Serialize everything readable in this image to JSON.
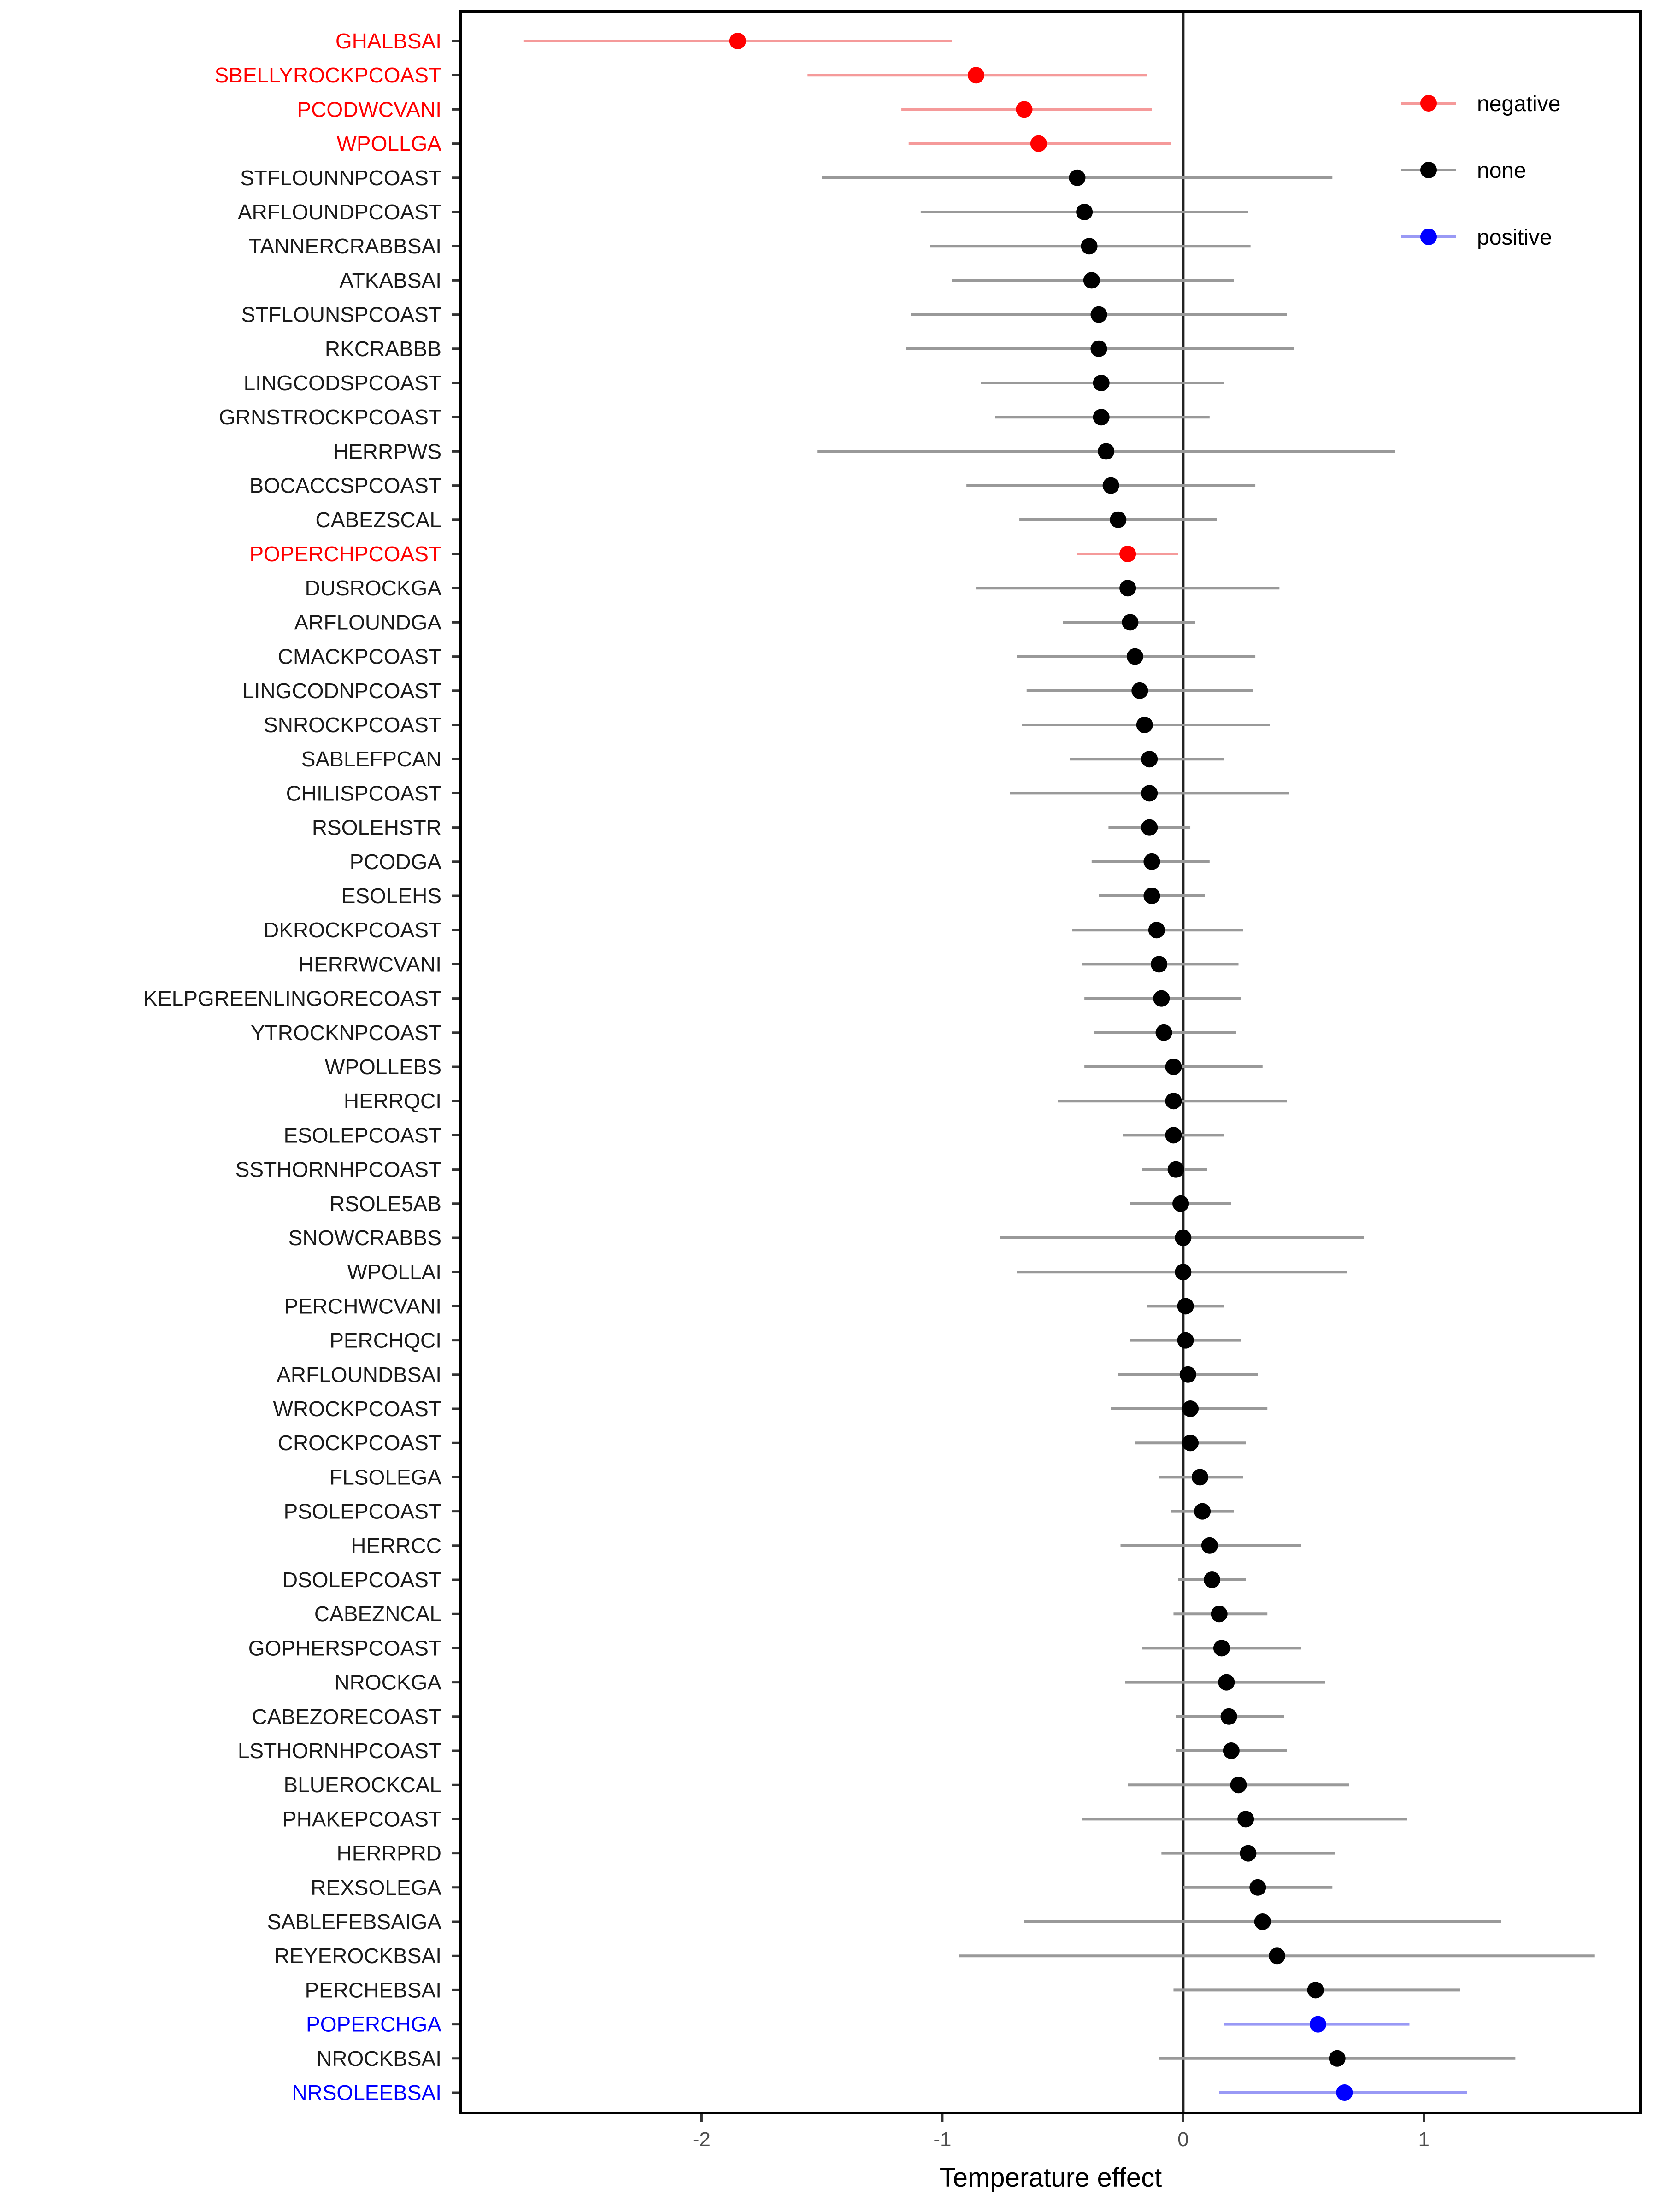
{
  "chart_data": {
    "type": "scatter",
    "subtype": "forest-plot",
    "title": "",
    "xlabel": "Temperature effect",
    "ylabel": "",
    "xlim": [
      -3.0,
      1.9
    ],
    "xticks": [
      -2,
      -1,
      0,
      1
    ],
    "xtick_labels": [
      "-2",
      "-1",
      "0",
      "1"
    ],
    "reference_line_x": 0,
    "grid": false,
    "legend_position": "top-right",
    "legend": [
      {
        "name": "negative",
        "color": "#ff0000",
        "line_color": "#f59a9a"
      },
      {
        "name": "none",
        "color": "#000000",
        "line_color": "#999999"
      },
      {
        "name": "positive",
        "color": "#0000ff",
        "line_color": "#9999f5"
      }
    ],
    "points": [
      {
        "label": "GHALBSAI",
        "est": -1.85,
        "low": -2.74,
        "high": -0.96,
        "group": "negative"
      },
      {
        "label": "SBELLYROCKPCOAST",
        "est": -0.86,
        "low": -1.56,
        "high": -0.15,
        "group": "negative"
      },
      {
        "label": "PCODWCVANI",
        "est": -0.66,
        "low": -1.17,
        "high": -0.13,
        "group": "negative"
      },
      {
        "label": "WPOLLGA",
        "est": -0.6,
        "low": -1.14,
        "high": -0.05,
        "group": "negative"
      },
      {
        "label": "STFLOUNNPCOAST",
        "est": -0.44,
        "low": -1.5,
        "high": 0.62,
        "group": "none"
      },
      {
        "label": "ARFLOUNDPCOAST",
        "est": -0.41,
        "low": -1.09,
        "high": 0.27,
        "group": "none"
      },
      {
        "label": "TANNERCRABBSAI",
        "est": -0.39,
        "low": -1.05,
        "high": 0.28,
        "group": "none"
      },
      {
        "label": "ATKABSAI",
        "est": -0.38,
        "low": -0.96,
        "high": 0.21,
        "group": "none"
      },
      {
        "label": "STFLOUNSPCOAST",
        "est": -0.35,
        "low": -1.13,
        "high": 0.43,
        "group": "none"
      },
      {
        "label": "RKCRABBB",
        "est": -0.35,
        "low": -1.15,
        "high": 0.46,
        "group": "none"
      },
      {
        "label": "LINGCODSPCOAST",
        "est": -0.34,
        "low": -0.84,
        "high": 0.17,
        "group": "none"
      },
      {
        "label": "GRNSTROCKPCOAST",
        "est": -0.34,
        "low": -0.78,
        "high": 0.11,
        "group": "none"
      },
      {
        "label": "HERRPWS",
        "est": -0.32,
        "low": -1.52,
        "high": 0.88,
        "group": "none"
      },
      {
        "label": "BOCACCSPCOAST",
        "est": -0.3,
        "low": -0.9,
        "high": 0.3,
        "group": "none"
      },
      {
        "label": "CABEZSCAL",
        "est": -0.27,
        "low": -0.68,
        "high": 0.14,
        "group": "none"
      },
      {
        "label": "POPERCHPCOAST",
        "est": -0.23,
        "low": -0.44,
        "high": -0.02,
        "group": "negative"
      },
      {
        "label": "DUSROCKGA",
        "est": -0.23,
        "low": -0.86,
        "high": 0.4,
        "group": "none"
      },
      {
        "label": "ARFLOUNDGA",
        "est": -0.22,
        "low": -0.5,
        "high": 0.05,
        "group": "none"
      },
      {
        "label": "CMACKPCOAST",
        "est": -0.2,
        "low": -0.69,
        "high": 0.3,
        "group": "none"
      },
      {
        "label": "LINGCODNPCOAST",
        "est": -0.18,
        "low": -0.65,
        "high": 0.29,
        "group": "none"
      },
      {
        "label": "SNROCKPCOAST",
        "est": -0.16,
        "low": -0.67,
        "high": 0.36,
        "group": "none"
      },
      {
        "label": "SABLEFPCAN",
        "est": -0.14,
        "low": -0.47,
        "high": 0.17,
        "group": "none"
      },
      {
        "label": "CHILISPCOAST",
        "est": -0.14,
        "low": -0.72,
        "high": 0.44,
        "group": "none"
      },
      {
        "label": "RSOLEHSTR",
        "est": -0.14,
        "low": -0.31,
        "high": 0.03,
        "group": "none"
      },
      {
        "label": "PCODGA",
        "est": -0.13,
        "low": -0.38,
        "high": 0.11,
        "group": "none"
      },
      {
        "label": "ESOLEHS",
        "est": -0.13,
        "low": -0.35,
        "high": 0.09,
        "group": "none"
      },
      {
        "label": "DKROCKPCOAST",
        "est": -0.11,
        "low": -0.46,
        "high": 0.25,
        "group": "none"
      },
      {
        "label": "HERRWCVANI",
        "est": -0.1,
        "low": -0.42,
        "high": 0.23,
        "group": "none"
      },
      {
        "label": "KELPGREENLINGORECOAST",
        "est": -0.09,
        "low": -0.41,
        "high": 0.24,
        "group": "none"
      },
      {
        "label": "YTROCKNPCOAST",
        "est": -0.08,
        "low": -0.37,
        "high": 0.22,
        "group": "none"
      },
      {
        "label": "WPOLLEBS",
        "est": -0.04,
        "low": -0.41,
        "high": 0.33,
        "group": "none"
      },
      {
        "label": "HERRQCI",
        "est": -0.04,
        "low": -0.52,
        "high": 0.43,
        "group": "none"
      },
      {
        "label": "ESOLEPCOAST",
        "est": -0.04,
        "low": -0.25,
        "high": 0.17,
        "group": "none"
      },
      {
        "label": "SSTHORNHPCOAST",
        "est": -0.03,
        "low": -0.17,
        "high": 0.1,
        "group": "none"
      },
      {
        "label": "RSOLE5AB",
        "est": -0.01,
        "low": -0.22,
        "high": 0.2,
        "group": "none"
      },
      {
        "label": "SNOWCRABBS",
        "est": 0.0,
        "low": -0.76,
        "high": 0.75,
        "group": "none"
      },
      {
        "label": "WPOLLAI",
        "est": 0.0,
        "low": -0.69,
        "high": 0.68,
        "group": "none"
      },
      {
        "label": "PERCHWCVANI",
        "est": 0.01,
        "low": -0.15,
        "high": 0.17,
        "group": "none"
      },
      {
        "label": "PERCHQCI",
        "est": 0.01,
        "low": -0.22,
        "high": 0.24,
        "group": "none"
      },
      {
        "label": "ARFLOUNDBSAI",
        "est": 0.02,
        "low": -0.27,
        "high": 0.31,
        "group": "none"
      },
      {
        "label": "WROCKPCOAST",
        "est": 0.03,
        "low": -0.3,
        "high": 0.35,
        "group": "none"
      },
      {
        "label": "CROCKPCOAST",
        "est": 0.03,
        "low": -0.2,
        "high": 0.26,
        "group": "none"
      },
      {
        "label": "FLSOLEGA",
        "est": 0.07,
        "low": -0.1,
        "high": 0.25,
        "group": "none"
      },
      {
        "label": "PSOLEPCOAST",
        "est": 0.08,
        "low": -0.05,
        "high": 0.21,
        "group": "none"
      },
      {
        "label": "HERRCC",
        "est": 0.11,
        "low": -0.26,
        "high": 0.49,
        "group": "none"
      },
      {
        "label": "DSOLEPCOAST",
        "est": 0.12,
        "low": -0.02,
        "high": 0.26,
        "group": "none"
      },
      {
        "label": "CABEZNCAL",
        "est": 0.15,
        "low": -0.04,
        "high": 0.35,
        "group": "none"
      },
      {
        "label": "GOPHERSPCOAST",
        "est": 0.16,
        "low": -0.17,
        "high": 0.49,
        "group": "none"
      },
      {
        "label": "NROCKGA",
        "est": 0.18,
        "low": -0.24,
        "high": 0.59,
        "group": "none"
      },
      {
        "label": "CABEZORECOAST",
        "est": 0.19,
        "low": -0.03,
        "high": 0.42,
        "group": "none"
      },
      {
        "label": "LSTHORNHPCOAST",
        "est": 0.2,
        "low": -0.03,
        "high": 0.43,
        "group": "none"
      },
      {
        "label": "BLUEROCKCAL",
        "est": 0.23,
        "low": -0.23,
        "high": 0.69,
        "group": "none"
      },
      {
        "label": "PHAKEPCOAST",
        "est": 0.26,
        "low": -0.42,
        "high": 0.93,
        "group": "none"
      },
      {
        "label": "HERRPRD",
        "est": 0.27,
        "low": -0.09,
        "high": 0.63,
        "group": "none"
      },
      {
        "label": "REXSOLEGA",
        "est": 0.31,
        "low": 0.0,
        "high": 0.62,
        "group": "none"
      },
      {
        "label": "SABLEFEBSAIGA",
        "est": 0.33,
        "low": -0.66,
        "high": 1.32,
        "group": "none"
      },
      {
        "label": "REYEROCKBSAI",
        "est": 0.39,
        "low": -0.93,
        "high": 1.71,
        "group": "none"
      },
      {
        "label": "PERCHEBSAI",
        "est": 0.55,
        "low": -0.04,
        "high": 1.15,
        "group": "none"
      },
      {
        "label": "POPERCHGA",
        "est": 0.56,
        "low": 0.17,
        "high": 0.94,
        "group": "positive"
      },
      {
        "label": "NROCKBSAI",
        "est": 0.64,
        "low": -0.1,
        "high": 1.38,
        "group": "none"
      },
      {
        "label": "NRSOLEEBSAI",
        "est": 0.67,
        "low": 0.15,
        "high": 1.18,
        "group": "positive"
      }
    ]
  }
}
